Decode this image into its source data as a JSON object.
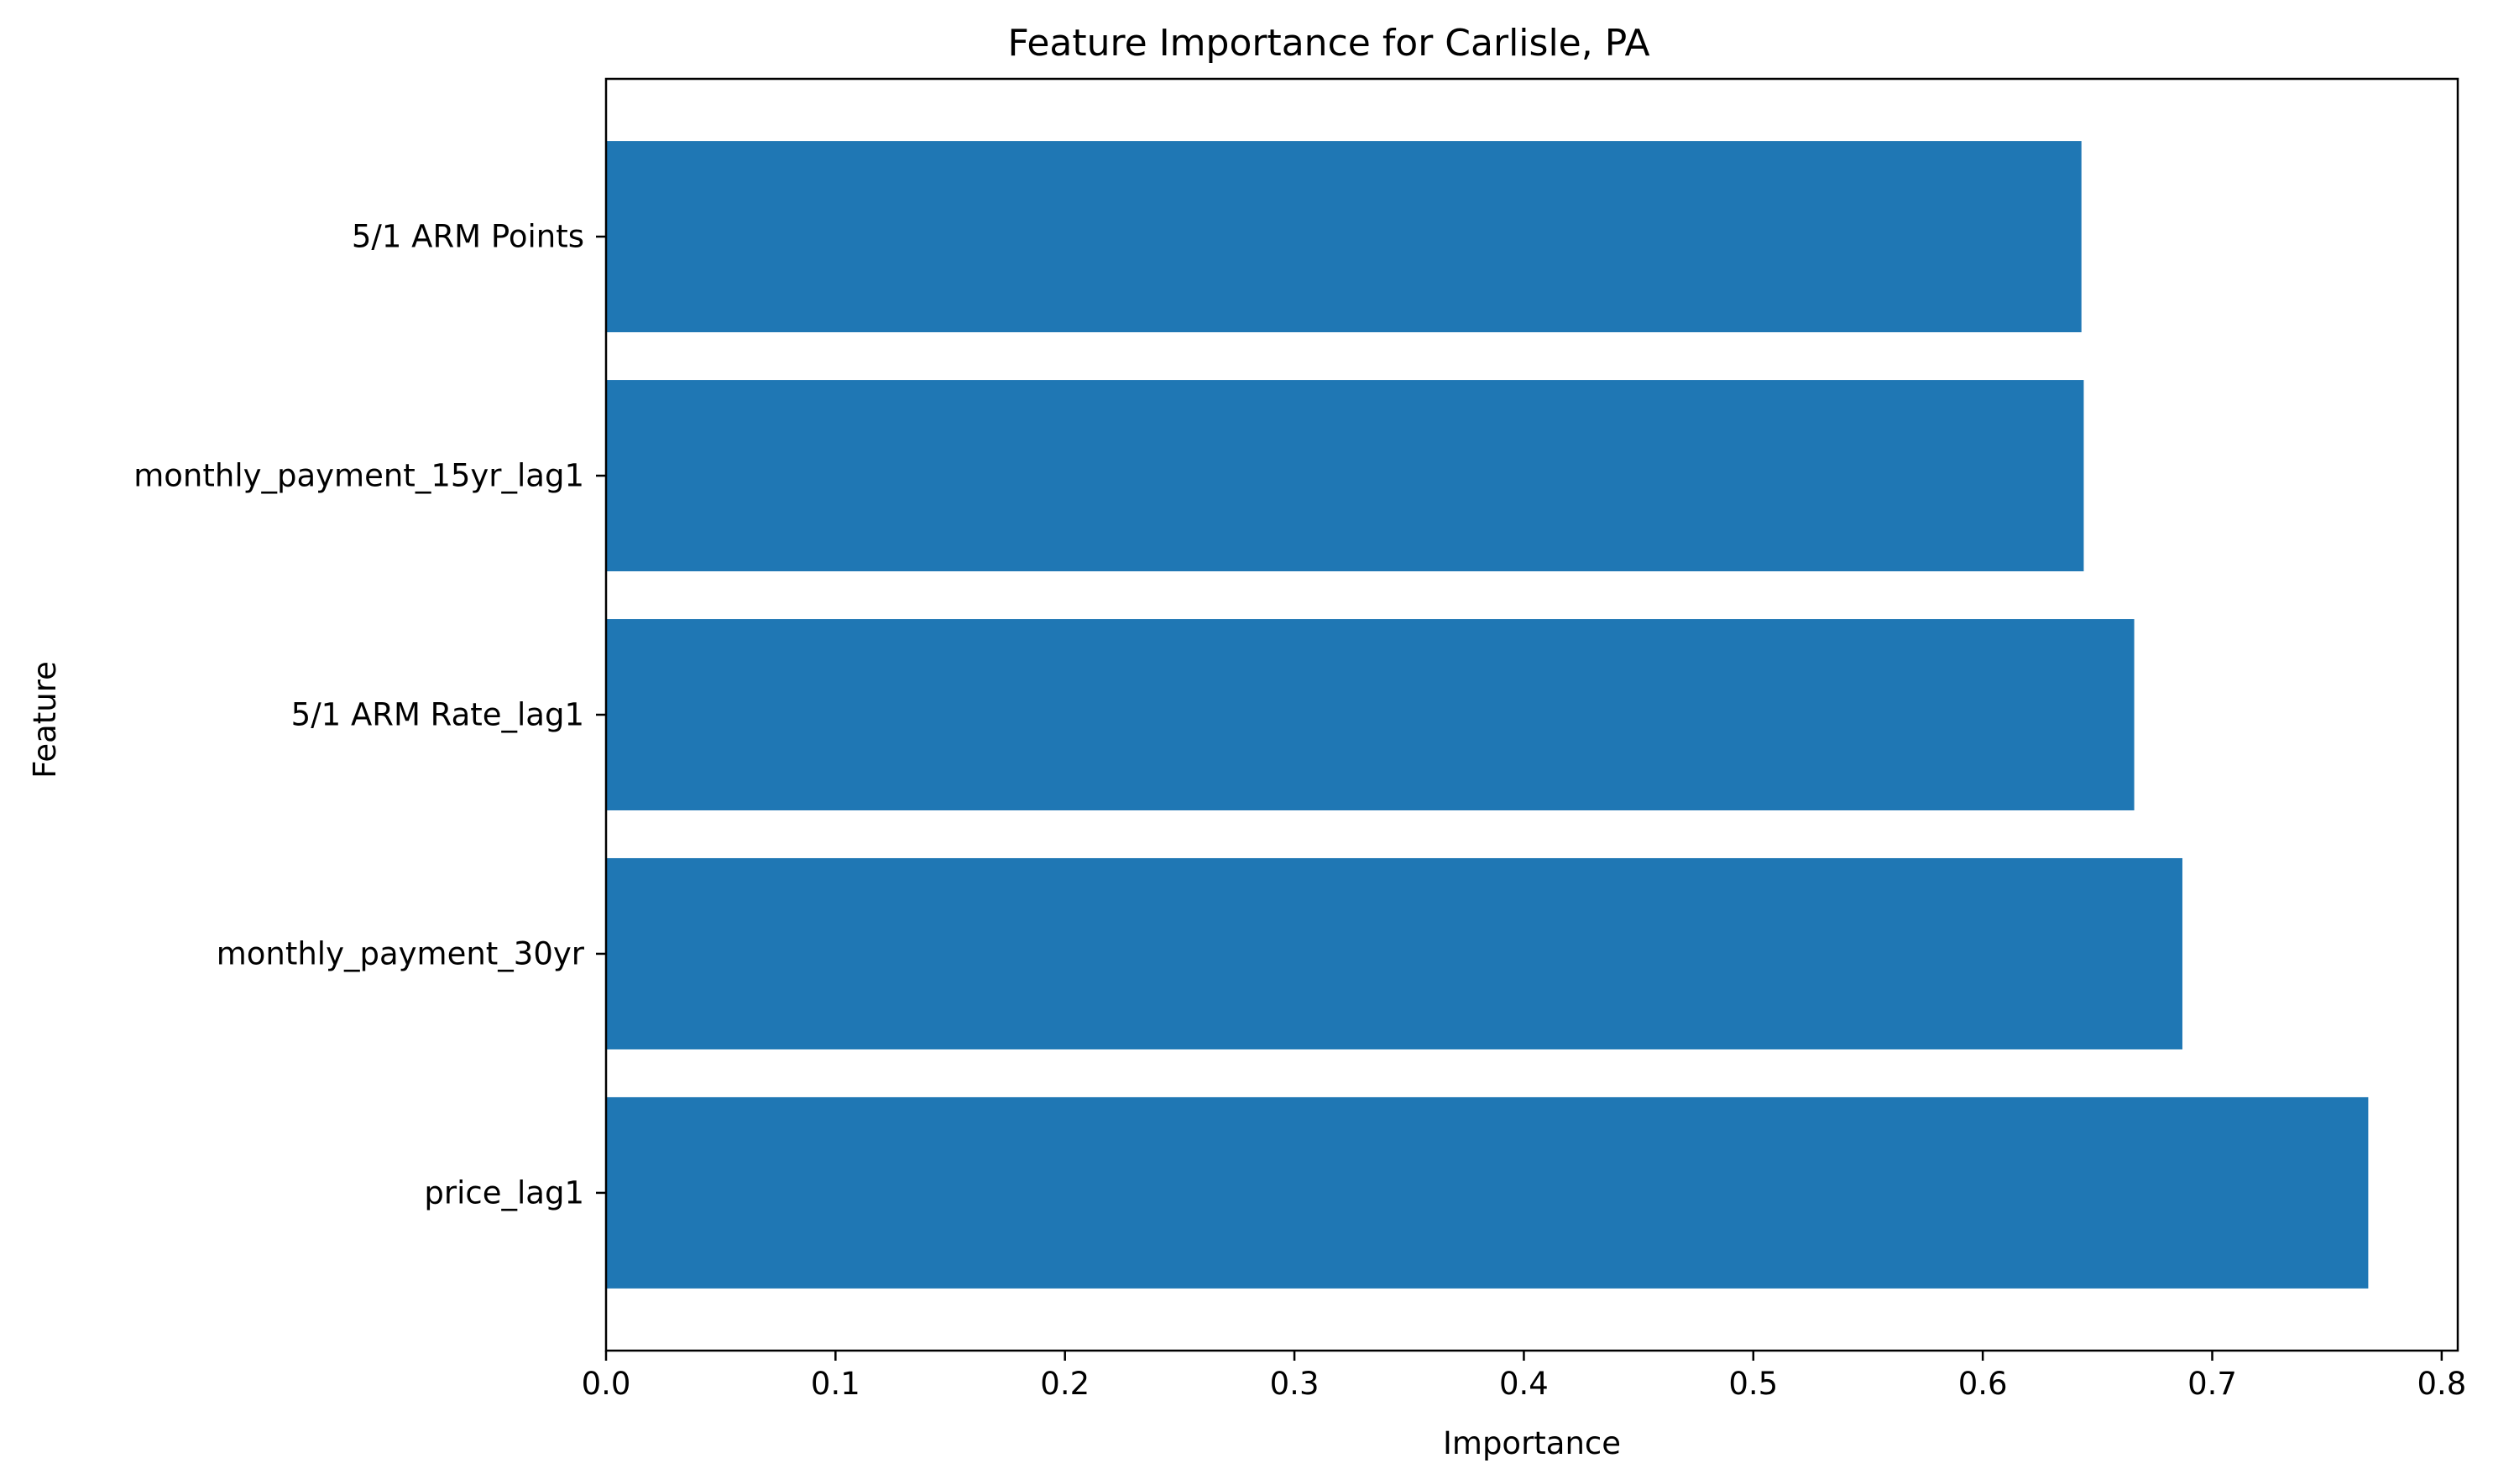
{
  "chart_data": {
    "type": "bar",
    "orientation": "horizontal",
    "title": "Feature Importance for Carlisle, PA",
    "xlabel": "Importance",
    "ylabel": "Feature",
    "categories": [
      "5/1 ARM Points",
      "monthly_payment_15yr_lag1",
      "5/1 ARM Rate_lag1",
      "monthly_payment_30yr",
      "price_lag1"
    ],
    "values": [
      0.643,
      0.644,
      0.666,
      0.687,
      0.768
    ],
    "xlim": [
      0,
      0.807
    ],
    "xticks": [
      0.0,
      0.1,
      0.2,
      0.3,
      0.4,
      0.5,
      0.6,
      0.7,
      0.8
    ],
    "xtick_labels": [
      "0.0",
      "0.1",
      "0.2",
      "0.3",
      "0.4",
      "0.5",
      "0.6",
      "0.7",
      "0.8"
    ],
    "grid": false,
    "bar_color": "#1f77b4"
  }
}
